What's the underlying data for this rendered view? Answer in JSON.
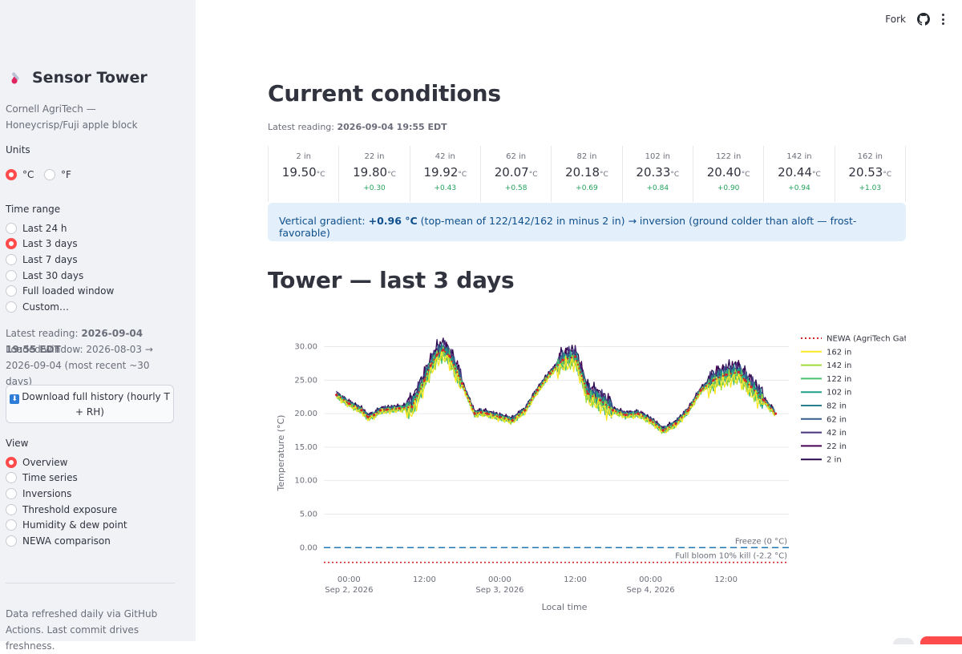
{
  "sidebar": {
    "title": "Sensor Tower",
    "subtitle": "Cornell AgriTech — Honeycrisp/Fuji apple block",
    "units": {
      "label": "Units",
      "options": [
        "°C",
        "°F"
      ],
      "selected": "°C"
    },
    "time_range": {
      "label": "Time range",
      "options": [
        "Last 24 h",
        "Last 3 days",
        "Last 7 days",
        "Last 30 days",
        "Full loaded window",
        "Custom…"
      ],
      "selected": "Last 3 days"
    },
    "latest_reading_label": "Latest reading:",
    "latest_reading_value": "2026-09-04 19:55 EDT",
    "loaded_window": "Loaded window: 2026-08-03 → 2026-09-04 (most recent ~30 days)",
    "download_label": "Download full history (hourly T + RH)",
    "view": {
      "label": "View",
      "options": [
        "Overview",
        "Time series",
        "Inversions",
        "Threshold exposure",
        "Humidity & dew point",
        "NEWA comparison"
      ],
      "selected": "Overview"
    },
    "footer": "Data refreshed daily via GitHub Actions. Last commit drives freshness."
  },
  "topbar": {
    "fork_label": "Fork"
  },
  "main": {
    "current_title": "Current conditions",
    "latest_label": "Latest reading:",
    "latest_value": "2026-09-04 19:55 EDT",
    "metrics": [
      {
        "label": "2 in",
        "value": "19.50",
        "unit": "°C",
        "delta": ""
      },
      {
        "label": "22 in",
        "value": "19.80",
        "unit": "°C",
        "delta": "+0.30"
      },
      {
        "label": "42 in",
        "value": "19.92",
        "unit": "°C",
        "delta": "+0.43"
      },
      {
        "label": "62 in",
        "value": "20.07",
        "unit": "°C",
        "delta": "+0.58"
      },
      {
        "label": "82 in",
        "value": "20.18",
        "unit": "°C",
        "delta": "+0.69"
      },
      {
        "label": "102 in",
        "value": "20.33",
        "unit": "°C",
        "delta": "+0.84"
      },
      {
        "label": "122 in",
        "value": "20.40",
        "unit": "°C",
        "delta": "+0.90"
      },
      {
        "label": "142 in",
        "value": "20.44",
        "unit": "°C",
        "delta": "+0.94"
      },
      {
        "label": "162 in",
        "value": "20.53",
        "unit": "°C",
        "delta": "+1.03"
      }
    ],
    "banner_prefix": "Vertical gradient: ",
    "banner_value": "+0.96 °C",
    "banner_suffix": " (top-mean of 122/142/162 in minus 2 in) → inversion (ground colder than aloft — frost-favorable)",
    "tower_title": "Tower — last 3 days"
  },
  "colors": {
    "accent": "#ff4b4b",
    "newa": "#d62728",
    "freeze": "#1f77b4",
    "bloom": "#d62728"
  },
  "chart_data": {
    "type": "line",
    "xlabel": "Local time",
    "ylabel": "Temperature (°C)",
    "ylim": [
      -2.2,
      31
    ],
    "yticks": [
      "0.00",
      "5.00",
      "10.00",
      "15.00",
      "20.00",
      "25.00",
      "30.00"
    ],
    "xticks": [
      {
        "hour": 0,
        "label": "00:00",
        "sublabel": "Sep 2, 2026"
      },
      {
        "hour": 12,
        "label": "12:00",
        "sublabel": ""
      },
      {
        "hour": 24,
        "label": "00:00",
        "sublabel": "Sep 3, 2026"
      },
      {
        "hour": 36,
        "label": "12:00",
        "sublabel": ""
      },
      {
        "hour": 48,
        "label": "00:00",
        "sublabel": "Sep 4, 2026"
      },
      {
        "hour": 60,
        "label": "12:00",
        "sublabel": ""
      }
    ],
    "x_hours": [
      -2,
      0,
      2,
      3,
      4,
      5,
      6,
      8,
      10,
      12,
      13,
      14,
      15,
      16,
      18,
      20,
      21,
      22,
      24,
      26,
      28,
      30,
      32,
      34,
      36,
      38,
      40,
      42,
      44,
      46,
      48,
      50,
      52,
      54,
      56,
      58,
      60,
      62,
      63,
      64,
      66,
      67.9
    ],
    "reference_series": [
      22.8,
      21.5,
      20.5,
      19.5,
      19.8,
      20.5,
      20.6,
      20.8,
      21.0,
      25.0,
      27.2,
      28.8,
      29.5,
      28.6,
      24.5,
      20.0,
      20.2,
      20.0,
      19.5,
      19.0,
      20.5,
      23.5,
      26.0,
      28.0,
      28.5,
      23.0,
      22.0,
      20.5,
      19.8,
      20.0,
      19.0,
      17.5,
      18.5,
      20.5,
      23.5,
      25.0,
      25.8,
      26.2,
      25.0,
      24.0,
      22.0,
      20.0
    ],
    "reference_name": "NEWA (AgriTech Gates)",
    "series": [
      {
        "name": "162 in",
        "color": "#fde725",
        "offset": -1.0
      },
      {
        "name": "142 in",
        "color": "#a0da39",
        "offset": -0.75
      },
      {
        "name": "122 in",
        "color": "#4ac16d",
        "offset": -0.5
      },
      {
        "name": "102 in",
        "color": "#1fa187",
        "offset": -0.25
      },
      {
        "name": "82 in",
        "color": "#277f8e",
        "offset": 0.0
      },
      {
        "name": "62 in",
        "color": "#365c8d",
        "offset": 0.25
      },
      {
        "name": "42 in",
        "color": "#46327e",
        "offset": 0.5
      },
      {
        "name": "22 in",
        "color": "#440154",
        "offset": 0.75
      },
      {
        "name": "2 in",
        "color": "#2a0a4f",
        "offset": 1.0
      }
    ],
    "hlines": [
      {
        "y": 0,
        "label": "Freeze (0 °C)"
      },
      {
        "y": -2.2,
        "label": "Full bloom 10% kill (-2.2 °C)"
      }
    ]
  }
}
